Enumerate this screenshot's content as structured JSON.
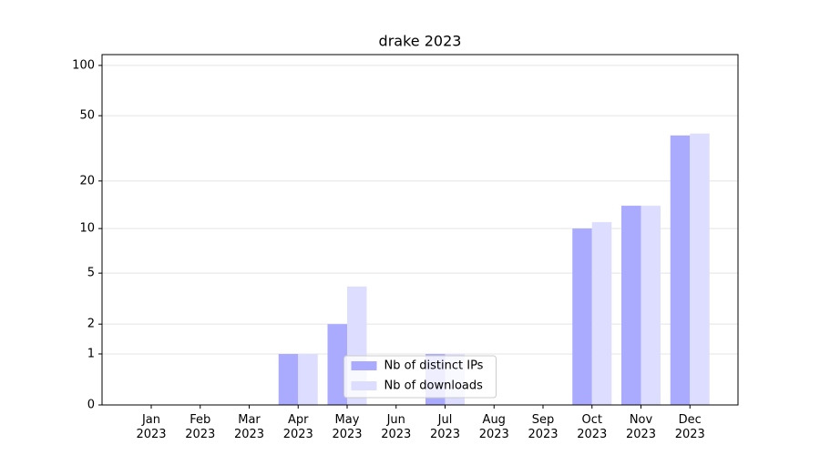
{
  "chart_data": {
    "type": "bar",
    "title": "drake 2023",
    "categories": [
      "Jan 2023",
      "Feb 2023",
      "Mar 2023",
      "Apr 2023",
      "May 2023",
      "Jun 2023",
      "Jul 2023",
      "Aug 2023",
      "Sep 2023",
      "Oct 2023",
      "Nov 2023",
      "Dec 2023"
    ],
    "series": [
      {
        "name": "Nb of distinct IPs",
        "color": "#aaaaff",
        "values": [
          0,
          0,
          0,
          1,
          2,
          0,
          1,
          0,
          0,
          10,
          14,
          38
        ]
      },
      {
        "name": "Nb of downloads",
        "color": "#ddddff",
        "values": [
          0,
          0,
          0,
          1,
          4,
          0,
          1,
          0,
          0,
          11,
          14,
          39
        ]
      }
    ],
    "yscale": "symlog",
    "ylim": [
      0,
      116
    ],
    "yticks": [
      0,
      1,
      2,
      5,
      10,
      20,
      50,
      100
    ],
    "grid": true,
    "legend": "lower center"
  }
}
